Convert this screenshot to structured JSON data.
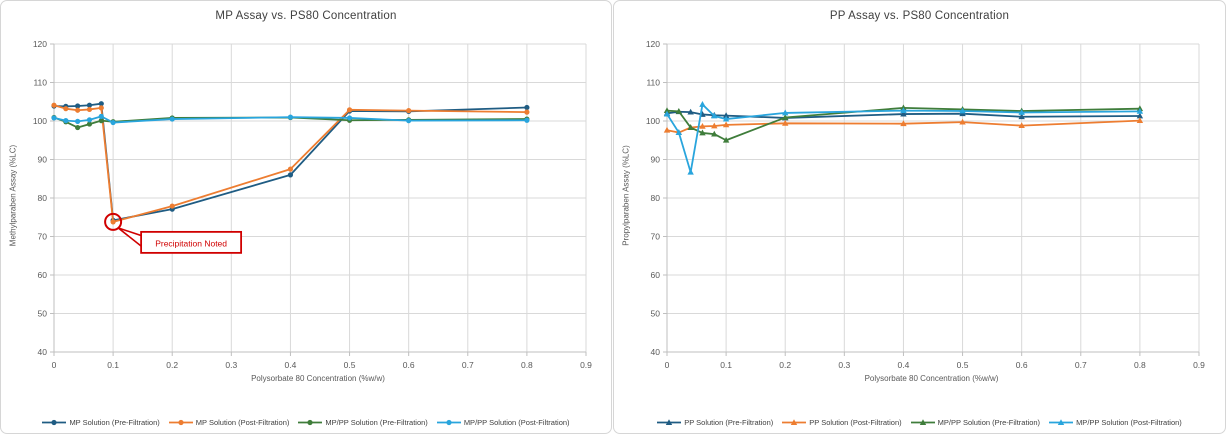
{
  "chart_data": [
    {
      "type": "line",
      "title": "MP Assay vs. PS80 Concentration",
      "xlabel": "Polysorbate 80 Concentration (%w/w)",
      "ylabel": "Methylparaben Assay (%LC)",
      "xlim": [
        0,
        0.9
      ],
      "ylim": [
        40,
        120
      ],
      "x_tick_labels": [
        "0",
        "0.1",
        "0.2",
        "0.3",
        "0.4",
        "0.5",
        "0.6",
        "0.7",
        "0.8",
        "0.9"
      ],
      "y_tick_labels": [
        "40",
        "50",
        "60",
        "70",
        "80",
        "90",
        "100",
        "110",
        "120"
      ],
      "grid": true,
      "legend_position": "bottom",
      "x": [
        0,
        0.02,
        0.04,
        0.06,
        0.08,
        0.1,
        0.2,
        0.4,
        0.5,
        0.6,
        0.8
      ],
      "series": [
        {
          "name": "MP Solution (Pre-Filtration)",
          "color": "#1F5C83",
          "marker": "circle",
          "values": [
            103.9,
            103.8,
            103.9,
            104.1,
            104.5,
            74.2,
            77.1,
            86.0,
            102.6,
            102.5,
            103.5
          ]
        },
        {
          "name": "MP Solution (Post-Filtration)",
          "color": "#ED7D31",
          "marker": "circle",
          "values": [
            104.1,
            103.2,
            102.8,
            103.0,
            103.4,
            73.8,
            77.9,
            87.5,
            102.9,
            102.7,
            102.3
          ]
        },
        {
          "name": "MP/PP Solution (Pre-Filtration)",
          "color": "#3F7D3B",
          "marker": "circle",
          "values": [
            100.9,
            99.8,
            98.3,
            99.2,
            100.1,
            99.8,
            100.8,
            100.9,
            100.2,
            100.3,
            100.5
          ]
        },
        {
          "name": "MP/PP Solution (Post-Filtration)",
          "color": "#29A5DD",
          "marker": "circle",
          "values": [
            100.8,
            100.1,
            99.9,
            100.3,
            101.2,
            99.6,
            100.5,
            101.0,
            100.8,
            100.1,
            100.2
          ]
        }
      ],
      "annotation": {
        "label": "Precipitation Noted",
        "x": 0.1,
        "y": 73.8,
        "color": "#D00000"
      }
    },
    {
      "type": "line",
      "title": "PP Assay vs. PS80 Concentration",
      "xlabel": "Polysorbate 80 Concentration (%w/w)",
      "ylabel": "Propylparaben Assay (%LC)",
      "xlim": [
        0,
        0.9
      ],
      "ylim": [
        40,
        120
      ],
      "x_tick_labels": [
        "0",
        "0.1",
        "0.2",
        "0.3",
        "0.4",
        "0.5",
        "0.6",
        "0.7",
        "0.8",
        "0.9"
      ],
      "y_tick_labels": [
        "40",
        "50",
        "60",
        "70",
        "80",
        "90",
        "100",
        "110",
        "120"
      ],
      "grid": true,
      "legend_position": "bottom",
      "x": [
        0,
        0.02,
        0.04,
        0.06,
        0.08,
        0.1,
        0.2,
        0.4,
        0.5,
        0.6,
        0.8
      ],
      "series": [
        {
          "name": "PP Solution (Pre-Filtration)",
          "color": "#1F5C83",
          "marker": "triangle",
          "values": [
            102.0,
            102.4,
            102.3,
            101.7,
            101.5,
            101.4,
            100.8,
            101.8,
            101.9,
            101.1,
            101.3
          ]
        },
        {
          "name": "PP Solution (Post-Filtration)",
          "color": "#ED7D31",
          "marker": "triangle",
          "values": [
            97.6,
            97.0,
            98.3,
            98.6,
            98.7,
            99.0,
            99.4,
            99.3,
            99.7,
            98.8,
            100.1
          ]
        },
        {
          "name": "MP/PP Solution (Pre-Filtration)",
          "color": "#3F7D3B",
          "marker": "triangle",
          "values": [
            102.7,
            102.5,
            98.3,
            96.9,
            96.6,
            95.0,
            100.9,
            103.4,
            103.0,
            102.6,
            103.2
          ]
        },
        {
          "name": "MP/PP Solution (Post-Filtration)",
          "color": "#29A5DD",
          "marker": "triangle",
          "values": [
            101.8,
            97.0,
            86.7,
            104.3,
            101.3,
            100.5,
            102.1,
            102.7,
            102.6,
            102.2,
            102.5
          ]
        }
      ]
    }
  ]
}
